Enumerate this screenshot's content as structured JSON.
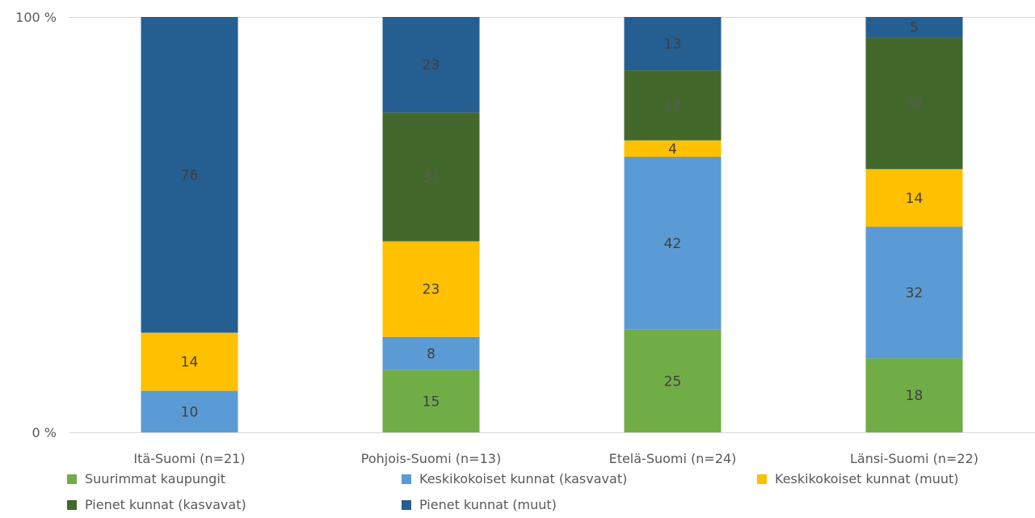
{
  "chart_data": {
    "type": "bar",
    "stacked": true,
    "percent_stacked": true,
    "categories": [
      "Itä-Suomi (n=21)",
      "Pohjois-Suomi (n=13)",
      "Etelä-Suomi (n=24)",
      "Länsi-Suomi (n=22)"
    ],
    "series": [
      {
        "name": "Suurimmat kaupungit",
        "values": [
          0,
          15,
          25,
          18
        ],
        "color": "#70AD47",
        "label_color": "#404040"
      },
      {
        "name": "Keskikokoiset kunnat (kasvavat)",
        "values": [
          10,
          8,
          42,
          32
        ],
        "color": "#5B9BD5",
        "label_color": "#404040"
      },
      {
        "name": "Keskikokoiset kunnat (muut)",
        "values": [
          14,
          23,
          4,
          14
        ],
        "color": "#FFC000",
        "label_color": "#404040"
      },
      {
        "name": "Pienet kunnat (kasvavat)",
        "values": [
          0,
          31,
          17,
          32
        ],
        "color": "#43682B",
        "label_color": "#5a5a5a"
      },
      {
        "name": "Pienet kunnat (muut)",
        "values": [
          76,
          23,
          13,
          5
        ],
        "color": "#255E91",
        "label_color": "#3f3f3f"
      }
    ],
    "y_ticks": [
      "0 %",
      "100 %"
    ],
    "ylim": [
      0,
      100
    ],
    "legend_position": "bottom",
    "grid": false
  }
}
